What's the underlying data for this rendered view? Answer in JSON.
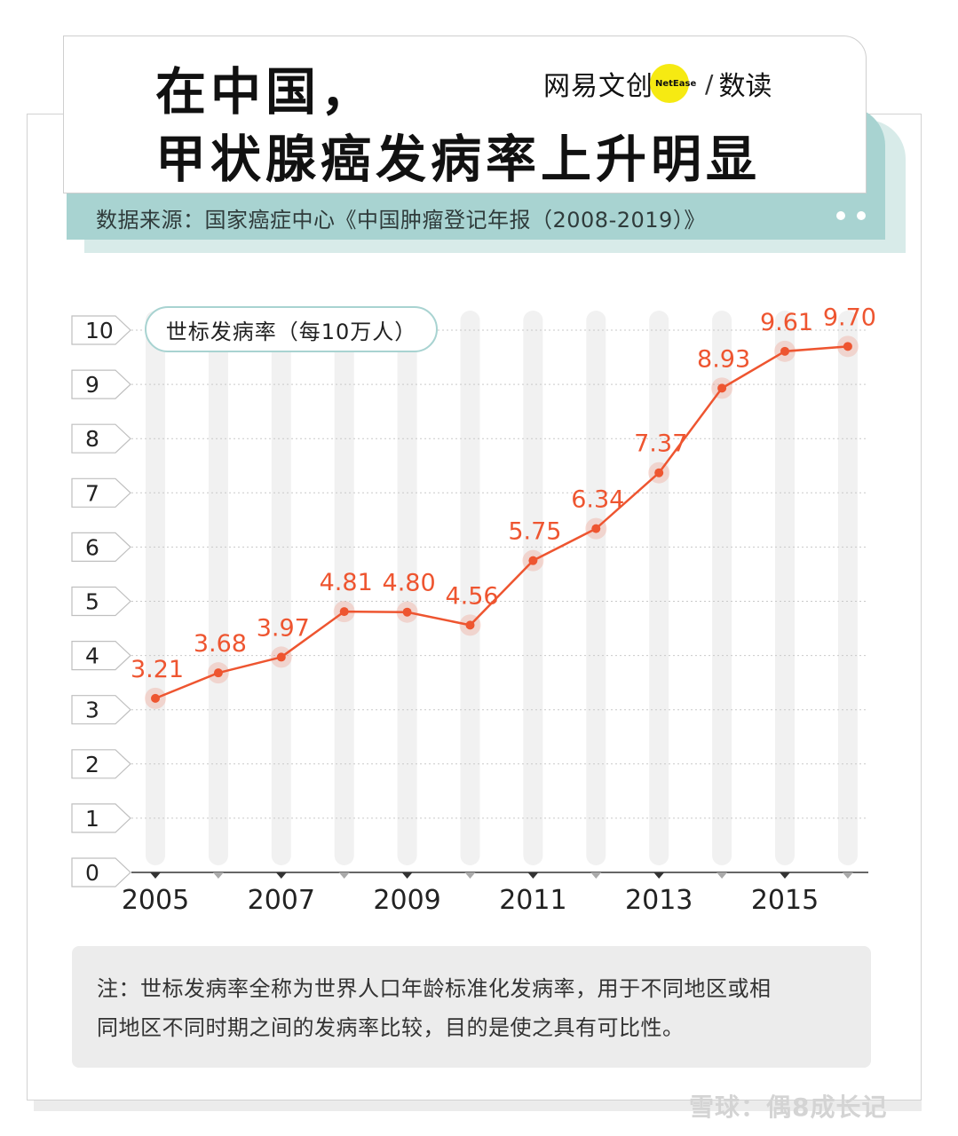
{
  "title": {
    "line1": "在中国，",
    "line2": "甲状腺癌发病率上升明显"
  },
  "brand": {
    "name": "网易文创",
    "en": "NetEase",
    "slash": "/",
    "sub": "数读"
  },
  "source": "数据来源：国家癌症中心《中国肿瘤登记年报（2008-2019）》",
  "note": {
    "line1": "注：世标发病率全称为世界人口年龄标准化发病率，用于不同地区或相",
    "line2": "同地区不同时期之间的发病率比较，目的是使之具有可比性。"
  },
  "watermark": "雪球：偶8成长记",
  "colors": {
    "line": "#ee5530",
    "teal": "#a8d3d1",
    "column": "#f1f1f1",
    "tick_bg": "#ffffff"
  },
  "chart_data": {
    "type": "line",
    "title": "",
    "legend": "世标发病率（每10万人）",
    "legend_position": "top-left",
    "x": [
      2005,
      2006,
      2007,
      2008,
      2009,
      2010,
      2011,
      2012,
      2013,
      2014,
      2015,
      2016
    ],
    "x_tick_labels": [
      "2005",
      "2007",
      "2009",
      "2011",
      "2013",
      "2015"
    ],
    "values": [
      3.21,
      3.68,
      3.97,
      4.81,
      4.8,
      4.56,
      5.75,
      6.34,
      7.37,
      8.93,
      9.61,
      9.7
    ],
    "data_labels": [
      "3.21",
      "3.68",
      "3.97",
      "4.81",
      "4.80",
      "4.56",
      "5.75",
      "6.34",
      "7.37",
      "8.93",
      "9.61",
      "9.70"
    ],
    "y_ticks": [
      "0",
      "1",
      "2",
      "3",
      "4",
      "5",
      "6",
      "7",
      "8",
      "9",
      "10"
    ],
    "ylim": [
      0,
      10
    ],
    "xlabel": "",
    "ylabel": "",
    "grid": true
  }
}
